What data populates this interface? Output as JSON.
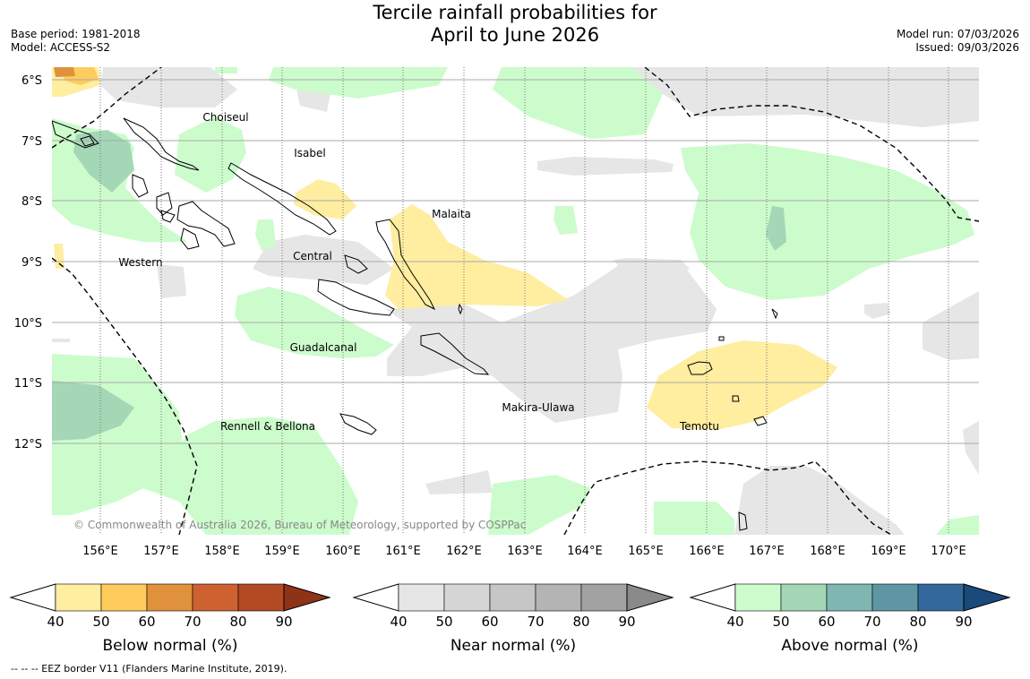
{
  "header": {
    "title_line1": "Tercile rainfall probabilities for",
    "title_line2": "April to June 2026",
    "base_period": "Base period: 1981-2018",
    "model": "Model: ACCESS-S2",
    "model_run": "Model run: 07/03/2026",
    "issued": "Issued: 09/03/2026"
  },
  "map": {
    "lat_labels": [
      "6°S",
      "7°S",
      "8°S",
      "9°S",
      "10°S",
      "11°S",
      "12°S"
    ],
    "lon_labels": [
      "156°E",
      "157°E",
      "158°E",
      "159°E",
      "160°E",
      "161°E",
      "162°E",
      "163°E",
      "164°E",
      "165°E",
      "166°E",
      "167°E",
      "168°E",
      "169°E",
      "170°E"
    ],
    "regions": [
      "Choiseul",
      "Isabel",
      "Malaita",
      "Western",
      "Central",
      "Guadalcanal",
      "Makira-Ulawa",
      "Rennell & Bellona",
      "Temotu"
    ],
    "copyright": "© Commonwealth of Australia 2026, Bureau of Meteorology, supported by COSPPac"
  },
  "colorbars": [
    {
      "title": "Below normal (%)",
      "ticks": [
        "40",
        "50",
        "60",
        "70",
        "80",
        "90"
      ],
      "colors": [
        "#ffeda0",
        "#fecc5c",
        "#e0913c",
        "#cd6230",
        "#b24a24",
        "#8e3318"
      ]
    },
    {
      "title": "Near normal (%)",
      "ticks": [
        "40",
        "50",
        "60",
        "70",
        "80",
        "90"
      ],
      "colors": [
        "#e6e6e6",
        "#d6d6d6",
        "#c6c6c6",
        "#b4b4b4",
        "#a2a2a2",
        "#8a8a8a"
      ]
    },
    {
      "title": "Above normal (%)",
      "ticks": [
        "40",
        "50",
        "60",
        "70",
        "80",
        "90"
      ],
      "colors": [
        "#ccfccc",
        "#a4d7b6",
        "#7fb6b2",
        "#5f96a3",
        "#32689c",
        "#1a4a7a"
      ]
    }
  ],
  "footer": {
    "legend_text": "--  --  -- EEZ border V11 (Flanders Marine Institute, 2019)."
  }
}
